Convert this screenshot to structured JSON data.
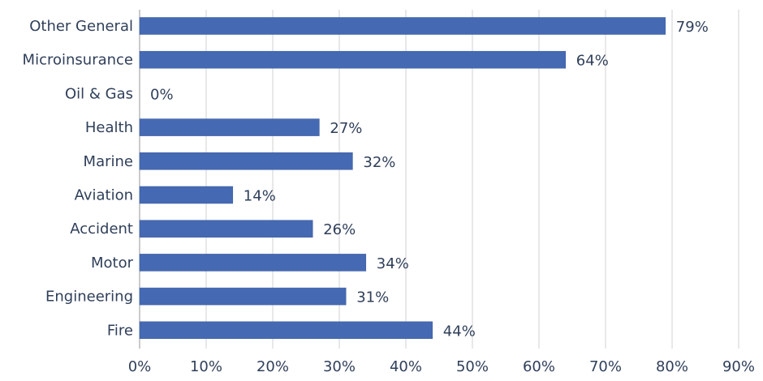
{
  "colors": {
    "bar": "#4569b2",
    "bar_edge": "#3c5d9f",
    "grid": "#d0d0d0",
    "axis": "#a8a8a8",
    "text": "#2f3f5a"
  },
  "chart_data": {
    "type": "bar",
    "orientation": "horizontal",
    "title": "",
    "xlabel": "",
    "ylabel": "",
    "grid": true,
    "xlim": [
      0,
      90
    ],
    "categories": [
      "Other General",
      "Microinsurance",
      "Oil & Gas",
      "Health",
      "Marine",
      "Aviation",
      "Accident",
      "Motor",
      "Engineering",
      "Fire"
    ],
    "values": [
      79,
      64,
      0,
      27,
      32,
      14,
      26,
      34,
      31,
      44
    ],
    "value_labels": [
      "79%",
      "64%",
      "0%",
      "27%",
      "32%",
      "14%",
      "26%",
      "34%",
      "31%",
      "44%"
    ],
    "ticks": [
      0,
      10,
      20,
      30,
      40,
      50,
      60,
      70,
      80,
      90
    ],
    "tick_labels": [
      "0%",
      "10%",
      "20%",
      "30%",
      "40%",
      "50%",
      "60%",
      "70%",
      "80%",
      "90%"
    ]
  }
}
